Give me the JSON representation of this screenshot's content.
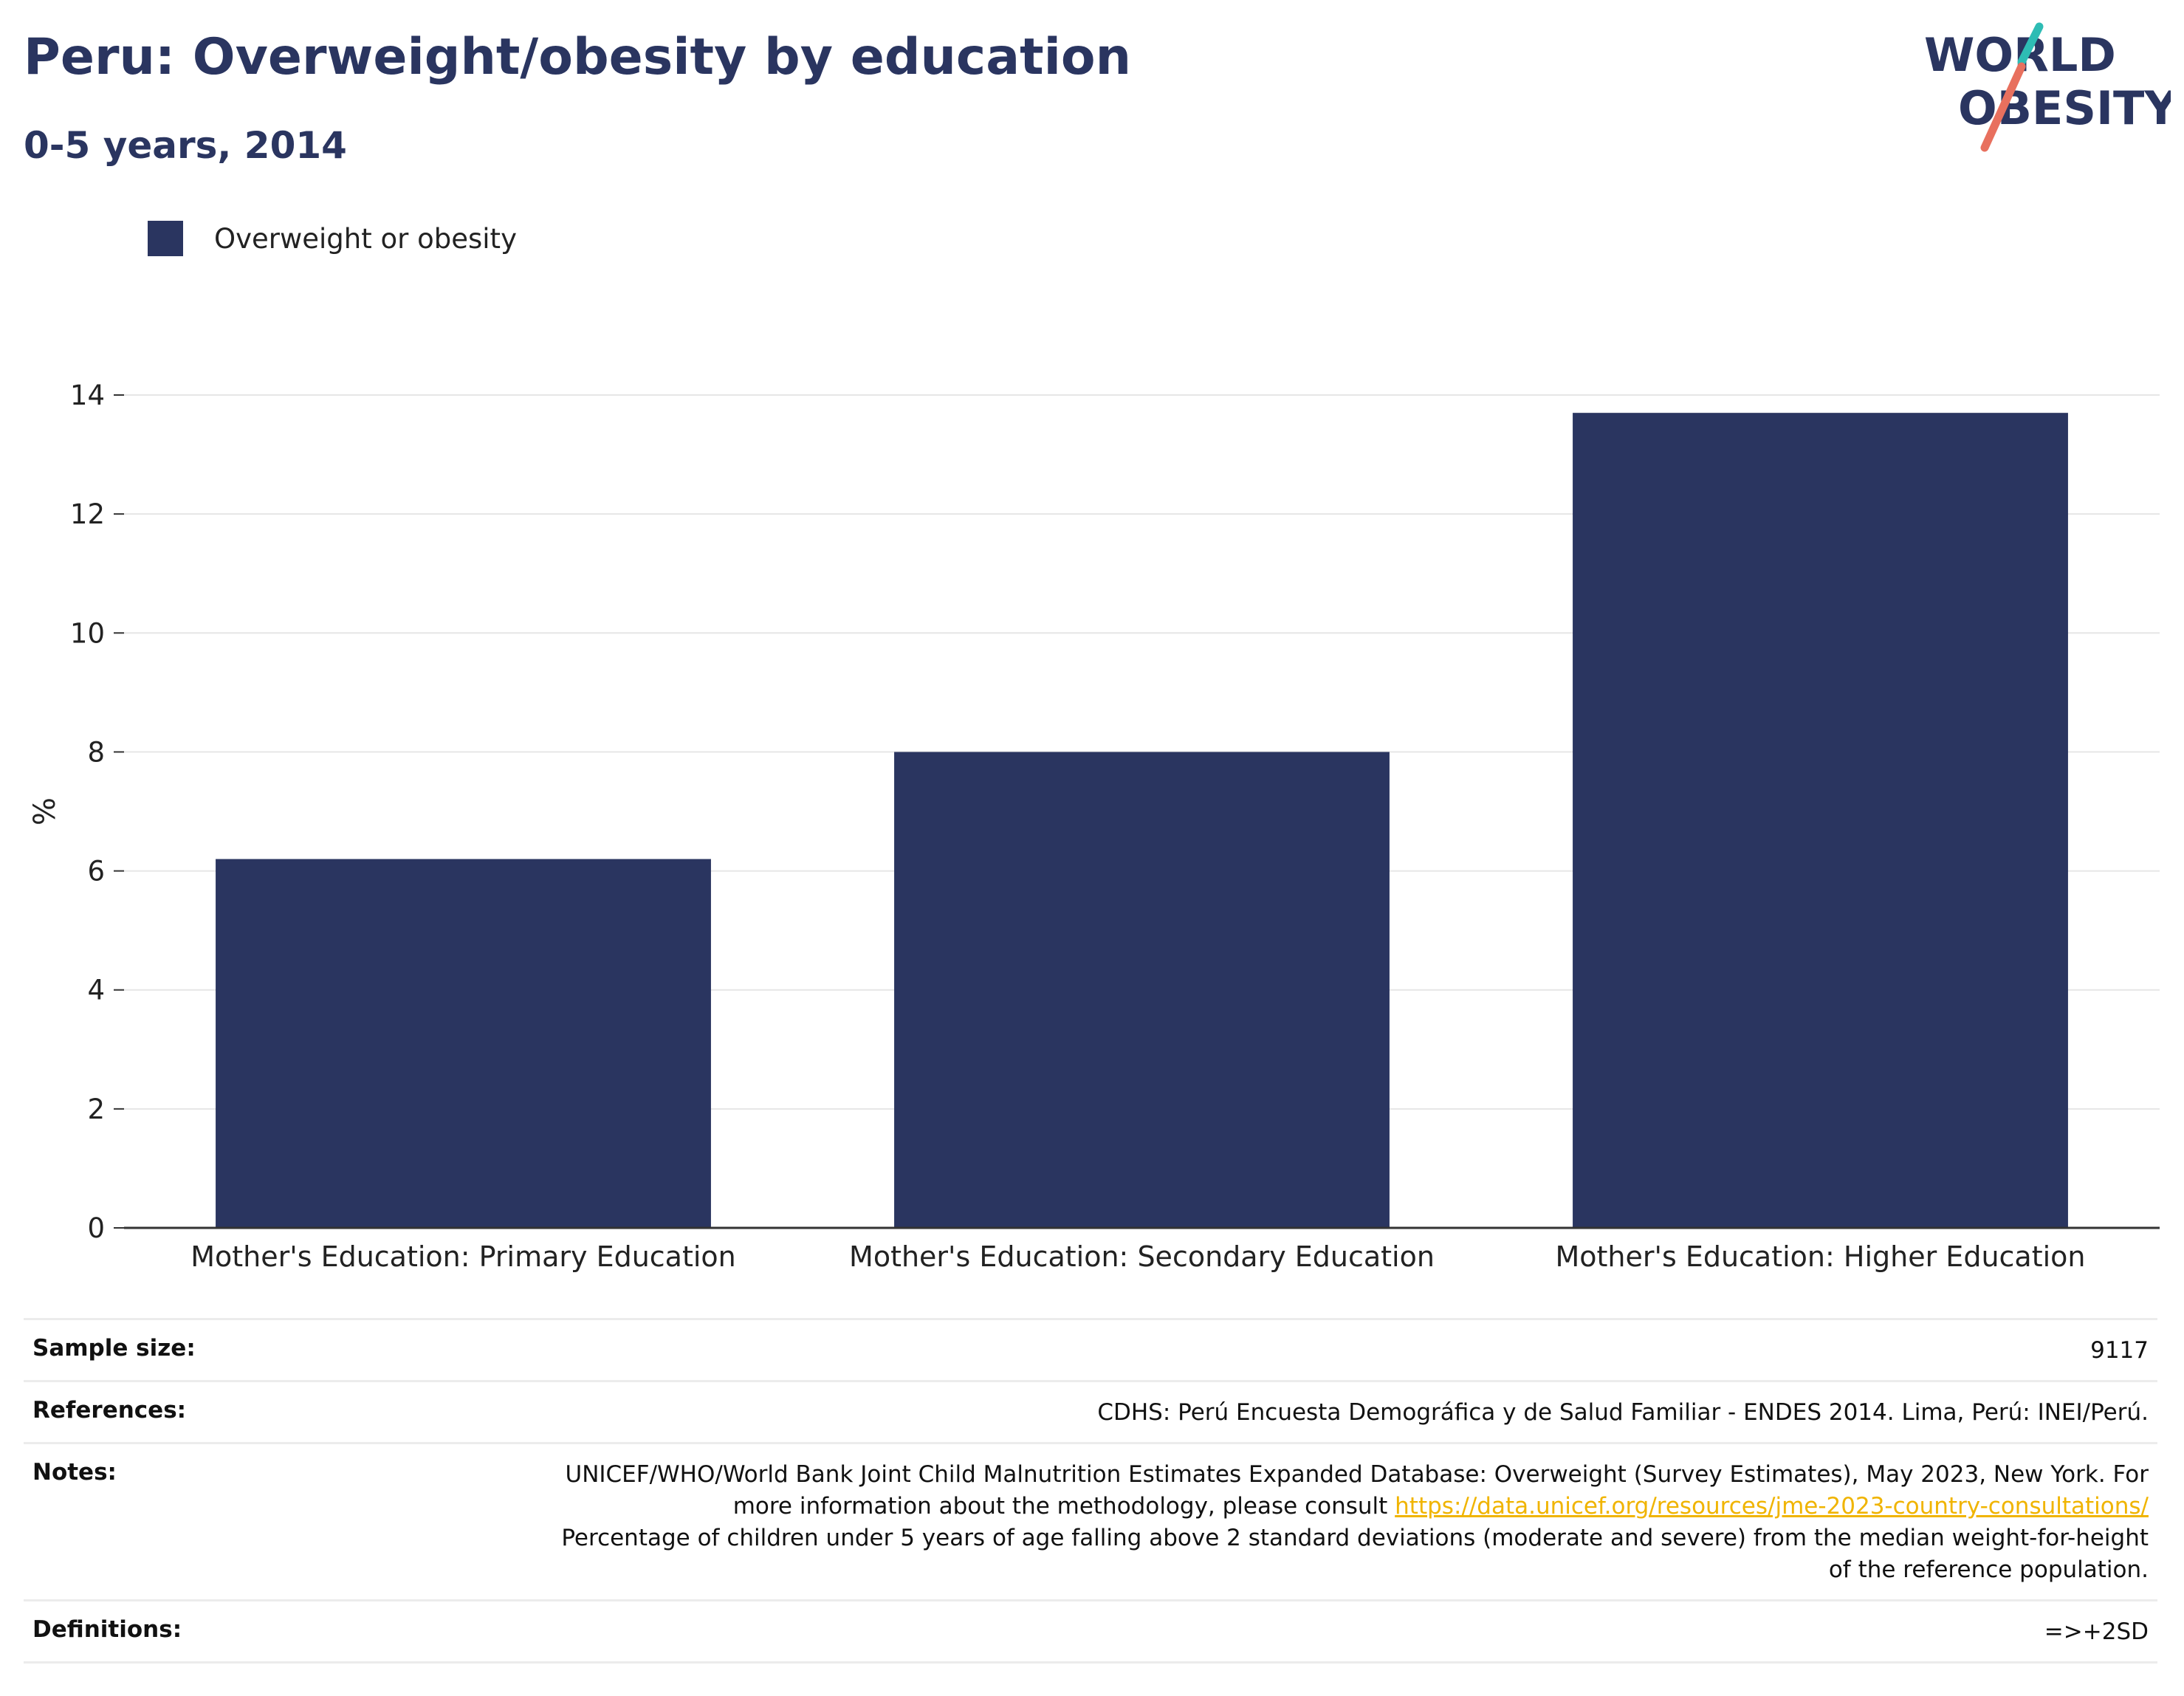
{
  "header": {
    "title": "Peru: Overweight/obesity by education",
    "subtitle": "0-5 years, 2014"
  },
  "logo": {
    "line1": "WORLD",
    "line2": "OBESITY"
  },
  "chart_data": {
    "type": "bar",
    "categories": [
      "Mother's Education: Primary Education",
      "Mother's Education: Secondary Education",
      "Mother's Education: Higher Education"
    ],
    "series": [
      {
        "name": "Overweight or obesity",
        "values": [
          6.2,
          8.0,
          13.7
        ]
      }
    ],
    "ylabel": "%",
    "ylim": [
      0,
      14
    ],
    "yticks": [
      0,
      2,
      4,
      6,
      8,
      10,
      12,
      14
    ],
    "grid": true,
    "legend": "top-left",
    "bar_color": "#2a3560"
  },
  "info": {
    "sample_size": {
      "label": "Sample size:",
      "value": "9117"
    },
    "references": {
      "label": "References:",
      "value": "CDHS: Perú Encuesta Demográfica y de Salud Familiar - ENDES 2014. Lima, Perú: INEI/Perú."
    },
    "notes": {
      "label": "Notes:",
      "text1": "UNICEF/WHO/World Bank Joint Child Malnutrition Estimates Expanded Database: Overweight (Survey Estimates), May 2023, New York. For more information about the methodology, please consult ",
      "link": "https://data.unicef.org/resources/jme-2023-country-consultations/",
      "text2": "Percentage of children under 5 years of age falling above 2 standard deviations (moderate and severe) from the median weight-for-height of the reference population."
    },
    "definitions": {
      "label": "Definitions:",
      "value": "=>+2SD"
    }
  },
  "colors": {
    "navy": "#2a3560",
    "logo_teal": "#2ebcb4",
    "logo_coral": "#e8705e",
    "link": "#f0b400"
  }
}
